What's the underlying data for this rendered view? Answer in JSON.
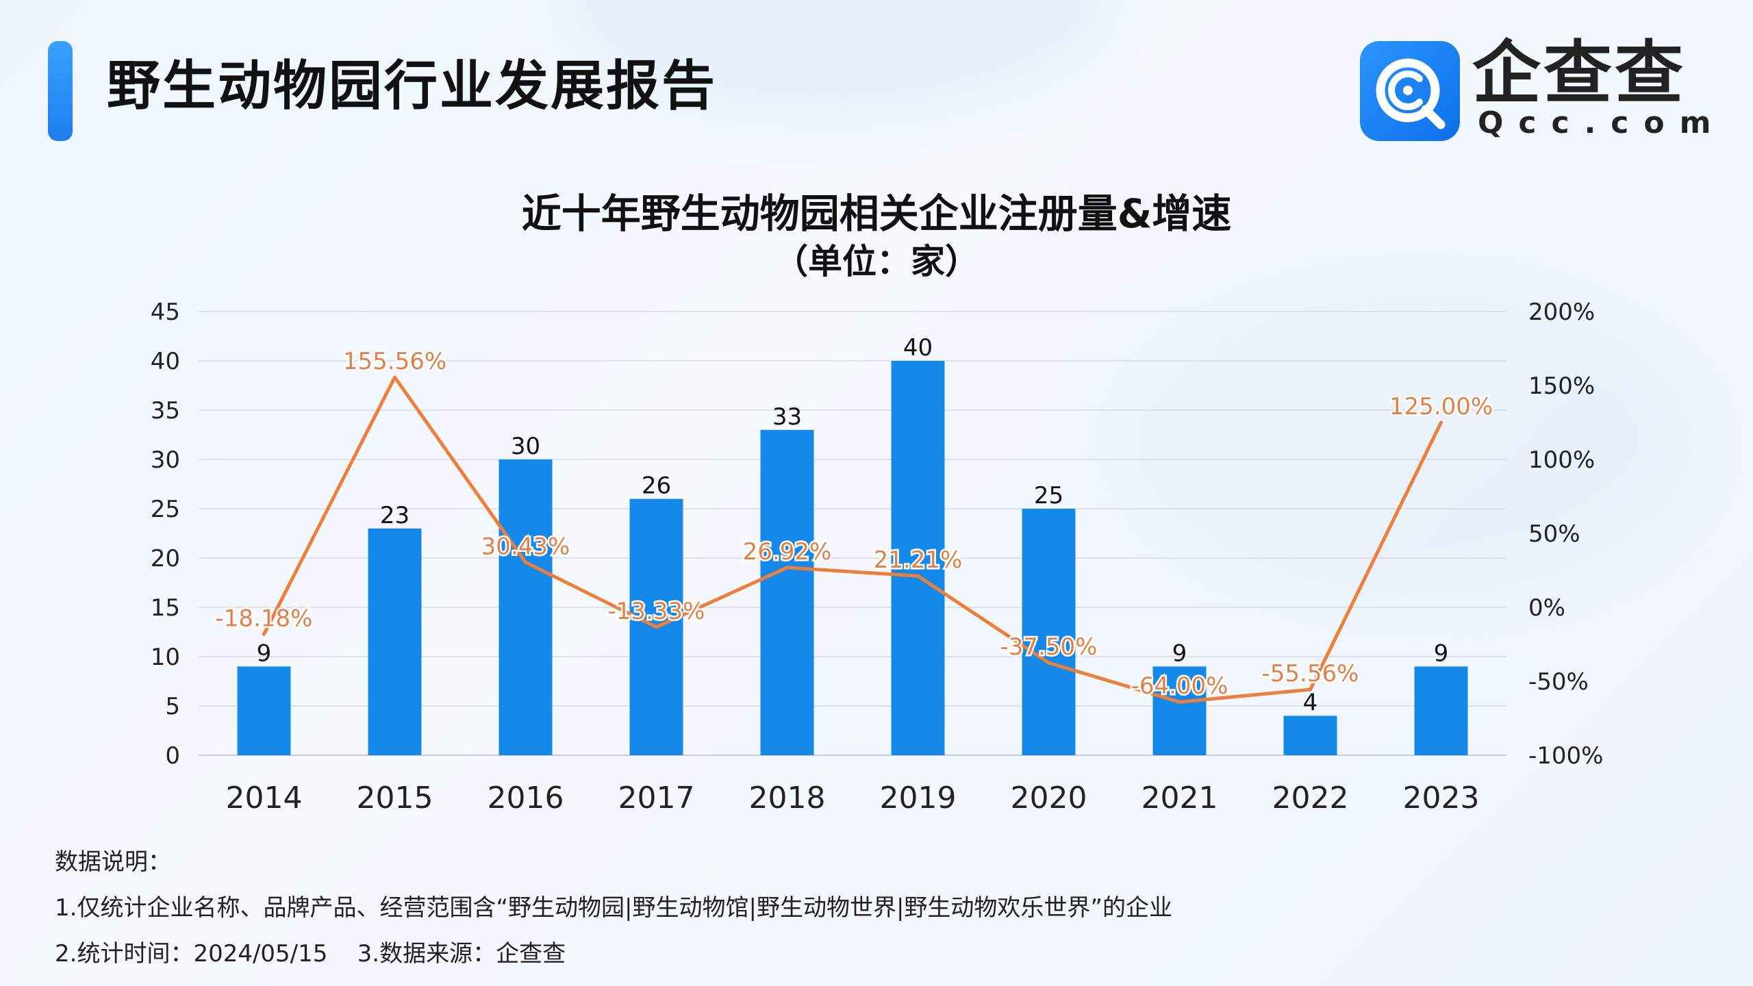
{
  "header": {
    "title": "野生动物园行业发展报告",
    "logo": {
      "name": "企查查",
      "domain": "Qcc.com",
      "icon": "qcc-search-q-icon",
      "color": "#1685f0"
    }
  },
  "chart_data": {
    "type": "bar",
    "title": "近十年野生动物园相关企业注册量&增速",
    "subtitle": "（单位：家）",
    "categories": [
      "2014",
      "2015",
      "2016",
      "2017",
      "2018",
      "2019",
      "2020",
      "2021",
      "2022",
      "2023"
    ],
    "series": [
      {
        "type": "bar",
        "axis": "left",
        "color": "#1589ea",
        "values": [
          9,
          23,
          30,
          26,
          33,
          40,
          25,
          9,
          4,
          9
        ],
        "labels": [
          "9",
          "23",
          "30",
          "26",
          "33",
          "40",
          "25",
          "9",
          "4",
          "9"
        ]
      },
      {
        "type": "line",
        "axis": "right",
        "color": "#ee7f3a",
        "values": [
          -18.18,
          155.56,
          30.43,
          -13.33,
          26.92,
          21.21,
          -37.5,
          -64.0,
          -55.56,
          125.0
        ],
        "labels": [
          "-18.18%",
          "155.56%",
          "30.43%",
          "-13.33%",
          "26.92%",
          "21.21%",
          "-37.50%",
          "-64.00%",
          "-55.56%",
          "125.00%"
        ]
      }
    ],
    "y_left": {
      "min": 0,
      "max": 45,
      "ticks": [
        0,
        5,
        10,
        15,
        20,
        25,
        30,
        35,
        40,
        45
      ],
      "tick_labels": [
        "0",
        "5",
        "10",
        "15",
        "20",
        "25",
        "30",
        "35",
        "40",
        "45"
      ]
    },
    "y_right": {
      "min": -100,
      "max": 200,
      "ticks": [
        -100,
        -50,
        0,
        50,
        100,
        150,
        200
      ],
      "tick_labels": [
        "-100%",
        "-50%",
        "0%",
        "50%",
        "100%",
        "150%",
        "200%"
      ]
    },
    "grid": true,
    "legend": "none"
  },
  "notes": {
    "heading": "数据说明：",
    "line1": "1.仅统计企业名称、品牌产品、经营范围含“野生动物园|野生动物馆|野生动物世界|野生动物欢乐世界”的企业",
    "line2": "2.统计时间：2024/05/15    3.数据来源：企查查"
  }
}
